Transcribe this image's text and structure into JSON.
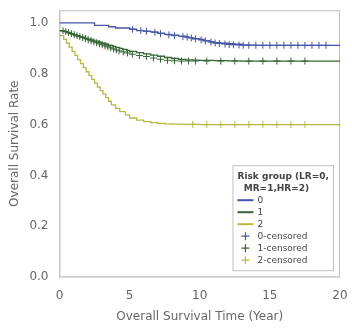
{
  "chart_data": {
    "type": "line",
    "xlabel": "Overall Survival Time (Year)",
    "ylabel": "Overall Survival Rate",
    "xlim": [
      0,
      20
    ],
    "ylim": [
      0.0,
      1.05
    ],
    "xticks": [
      0,
      5,
      10,
      15,
      20
    ],
    "yticks": [
      {
        "value": 0.0,
        "label": "0.0"
      },
      {
        "value": 0.2,
        "label": "0.2"
      },
      {
        "value": 0.4,
        "label": "0.4"
      },
      {
        "value": 0.6,
        "label": "0.6"
      },
      {
        "value": 0.8,
        "label": "0.8"
      },
      {
        "value": 1.0,
        "label": "1.0"
      }
    ],
    "grid": false,
    "legend": "lower right",
    "legend_title": "Risk group (LR=0,\n  MR=1,HR=2)",
    "series": [
      {
        "name": "0",
        "type": "step",
        "color": "#4455aa",
        "x": [
          0,
          2.0,
          2.5,
          3.5,
          4.0,
          5.0,
          5.5,
          6.0,
          6.5,
          7.0,
          7.5,
          8.0,
          8.5,
          9.0,
          9.2,
          9.5,
          10.0,
          10.3,
          10.7,
          11.0,
          11.5,
          12.0,
          12.5,
          13.0,
          13.5,
          14.0,
          15.0,
          16.0,
          17.0,
          18.0,
          19.0,
          20.0
        ],
        "values": [
          1.0,
          1.0,
          0.99,
          0.985,
          0.98,
          0.975,
          0.97,
          0.968,
          0.965,
          0.96,
          0.955,
          0.952,
          0.948,
          0.945,
          0.942,
          0.938,
          0.935,
          0.93,
          0.926,
          0.922,
          0.92,
          0.918,
          0.916,
          0.914,
          0.913,
          0.912,
          0.912,
          0.912,
          0.912,
          0.912,
          0.912,
          0.912
        ]
      },
      {
        "name": "1",
        "type": "step",
        "color": "#336633",
        "x": [
          0,
          0.2,
          0.4,
          0.6,
          0.8,
          1.0,
          1.2,
          1.5,
          1.8,
          2.0,
          2.3,
          2.5,
          2.8,
          3.0,
          3.3,
          3.5,
          3.8,
          4.0,
          4.3,
          4.5,
          4.8,
          5.0,
          5.5,
          6.0,
          6.5,
          7.0,
          7.5,
          8.0,
          8.5,
          9.0,
          9.5,
          10.0,
          11.0,
          12.0,
          13.0,
          14.0,
          15.0,
          16.0,
          17.0,
          18.0,
          20.0
        ],
        "values": [
          0.97,
          0.968,
          0.965,
          0.96,
          0.956,
          0.952,
          0.948,
          0.944,
          0.94,
          0.936,
          0.932,
          0.928,
          0.924,
          0.92,
          0.916,
          0.912,
          0.908,
          0.904,
          0.9,
          0.896,
          0.892,
          0.888,
          0.883,
          0.878,
          0.873,
          0.869,
          0.864,
          0.86,
          0.857,
          0.855,
          0.854,
          0.853,
          0.852,
          0.851,
          0.85,
          0.85,
          0.85,
          0.85,
          0.85,
          0.85,
          0.85
        ]
      },
      {
        "name": "2",
        "type": "step",
        "color": "#b8b840",
        "x": [
          0,
          0.3,
          0.5,
          0.7,
          0.9,
          1.1,
          1.3,
          1.5,
          1.7,
          1.9,
          2.1,
          2.3,
          2.5,
          2.7,
          2.9,
          3.1,
          3.3,
          3.5,
          3.7,
          4.0,
          4.3,
          4.7,
          5.0,
          5.5,
          6.0,
          6.5,
          7.0,
          7.5,
          8.0,
          9.0,
          10.0,
          11.0,
          12.0,
          13.0,
          14.0,
          15.0,
          16.0,
          17.0,
          18.0,
          20.0
        ],
        "values": [
          0.95,
          0.935,
          0.92,
          0.905,
          0.888,
          0.872,
          0.856,
          0.84,
          0.824,
          0.808,
          0.793,
          0.778,
          0.763,
          0.748,
          0.734,
          0.72,
          0.706,
          0.692,
          0.678,
          0.664,
          0.651,
          0.638,
          0.626,
          0.618,
          0.612,
          0.608,
          0.605,
          0.603,
          0.602,
          0.601,
          0.6,
          0.6,
          0.6,
          0.6,
          0.6,
          0.6,
          0.6,
          0.6,
          0.6,
          0.6
        ]
      },
      {
        "name": "0-censored",
        "type": "scatter",
        "marker": "plus",
        "color": "#4455aa",
        "x": [
          5.2,
          5.8,
          6.2,
          6.8,
          7.2,
          7.8,
          8.2,
          8.8,
          9.1,
          9.4,
          9.7,
          10.1,
          10.4,
          10.8,
          11.1,
          11.4,
          11.8,
          12.1,
          12.4,
          12.8,
          13.1,
          13.5,
          14.0,
          14.5,
          15.0,
          15.5,
          16.0,
          16.5,
          17.0,
          17.5,
          18.0,
          18.5,
          19.0
        ],
        "values": [
          0.975,
          0.97,
          0.967,
          0.963,
          0.958,
          0.953,
          0.95,
          0.946,
          0.944,
          0.941,
          0.937,
          0.933,
          0.929,
          0.925,
          0.921,
          0.919,
          0.917,
          0.915,
          0.914,
          0.913,
          0.912,
          0.912,
          0.912,
          0.912,
          0.912,
          0.912,
          0.912,
          0.912,
          0.912,
          0.912,
          0.912,
          0.912,
          0.912
        ]
      },
      {
        "name": "1-censored",
        "type": "scatter",
        "marker": "plus",
        "color": "#336633",
        "x": [
          0.25,
          0.45,
          0.65,
          0.85,
          1.05,
          1.25,
          1.45,
          1.65,
          1.85,
          2.05,
          2.25,
          2.45,
          2.65,
          2.85,
          3.05,
          3.25,
          3.45,
          3.65,
          3.85,
          4.05,
          4.25,
          4.55,
          4.85,
          5.2,
          5.7,
          6.2,
          6.7,
          7.2,
          7.7,
          8.2,
          8.7,
          9.2,
          9.7,
          10.5,
          11.5,
          12.5,
          13.5,
          14.5,
          15.5,
          16.5,
          17.5
        ],
        "values": [
          0.969,
          0.966,
          0.962,
          0.958,
          0.954,
          0.95,
          0.946,
          0.942,
          0.938,
          0.934,
          0.93,
          0.926,
          0.922,
          0.918,
          0.914,
          0.91,
          0.906,
          0.902,
          0.898,
          0.894,
          0.89,
          0.886,
          0.882,
          0.877,
          0.872,
          0.868,
          0.862,
          0.857,
          0.853,
          0.851,
          0.85,
          0.85,
          0.85,
          0.85,
          0.85,
          0.85,
          0.85,
          0.85,
          0.85,
          0.85,
          0.85
        ]
      },
      {
        "name": "2-censored",
        "type": "scatter",
        "marker": "plus",
        "color": "#b8b840",
        "x": [
          9.5,
          10.5,
          11.5,
          12.5,
          13.5,
          14.5,
          15.5,
          16.5,
          17.5
        ],
        "values": [
          0.601,
          0.6,
          0.6,
          0.6,
          0.6,
          0.6,
          0.6,
          0.6,
          0.6
        ]
      }
    ]
  }
}
